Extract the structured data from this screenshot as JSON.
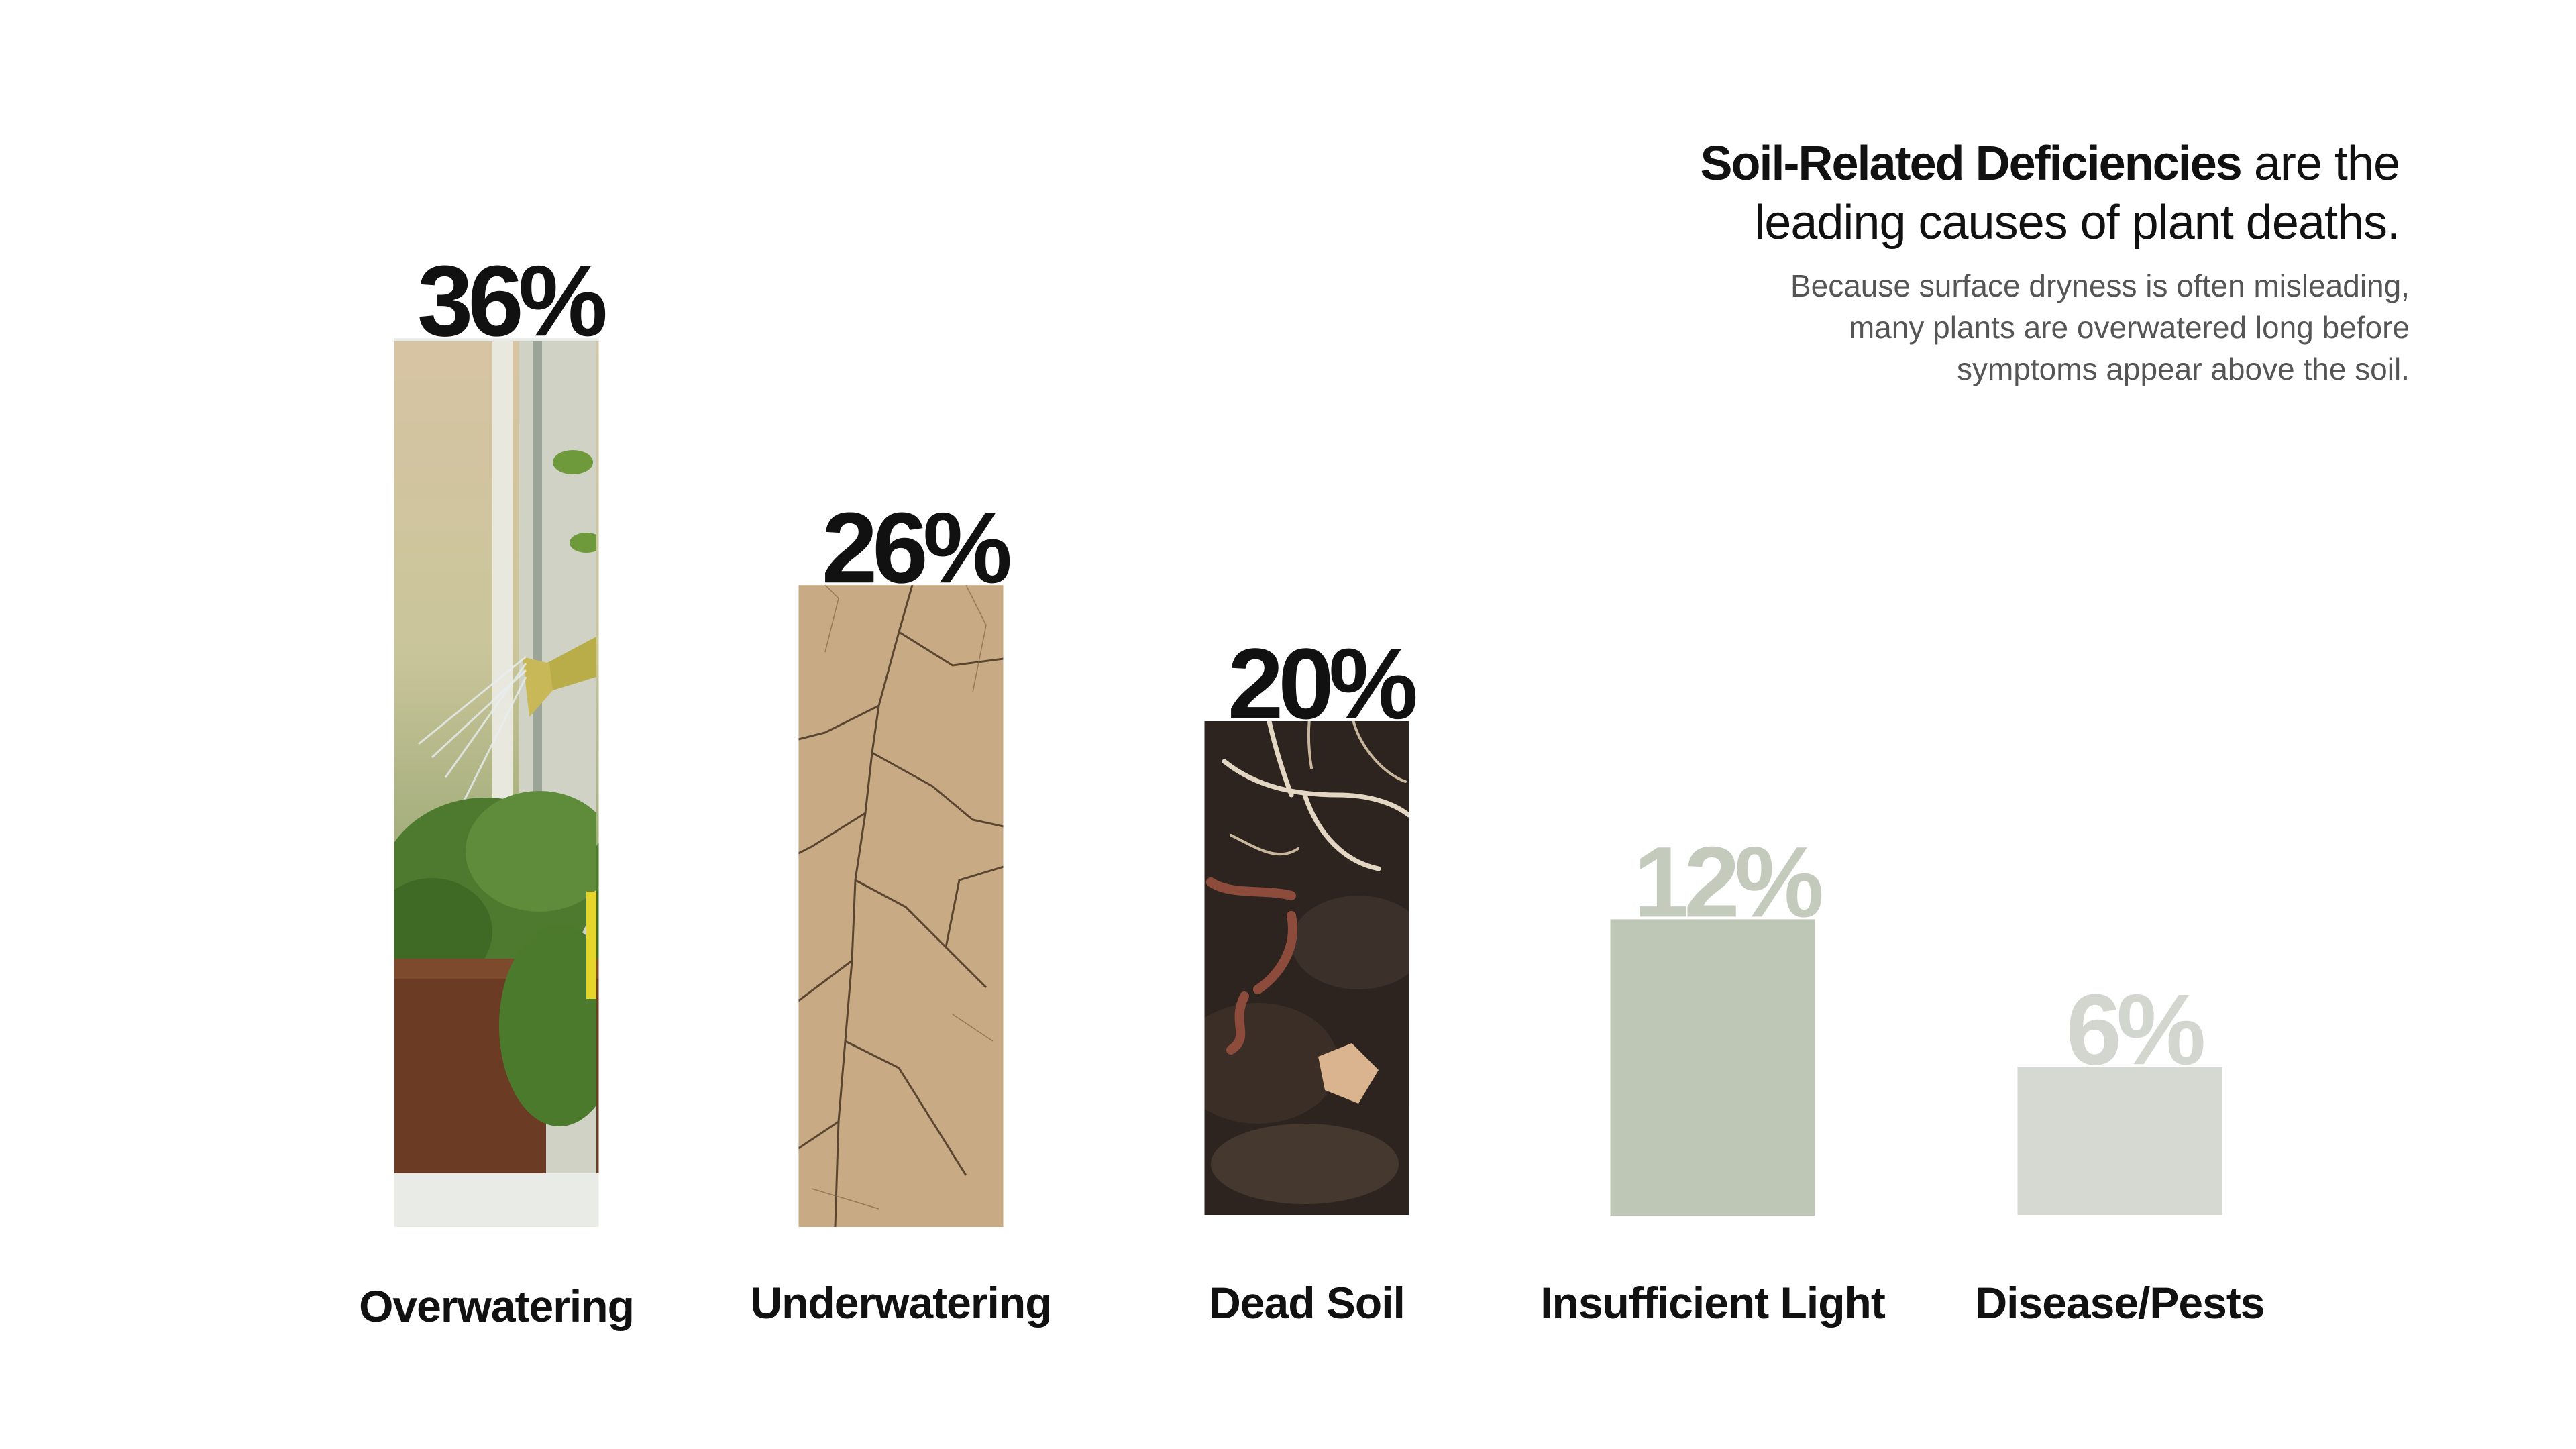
{
  "header": {
    "headline_bold": "Soil-Related Deficiencies",
    "headline_rest_line1": " are the",
    "headline_line2": "leading causes of plant deaths.",
    "subtext_line1": "Because surface dryness is often misleading,",
    "subtext_line2": "many plants are overwatered long before",
    "subtext_line3": "symptoms appear above the soil."
  },
  "chart_data": {
    "type": "bar",
    "categories": [
      "Overwatering",
      "Underwatering",
      "Dead Soil",
      "Insufficient Light",
      "Disease/Pests"
    ],
    "values": [
      36,
      26,
      20,
      12,
      6
    ],
    "value_labels": [
      "36%",
      "26%",
      "20%",
      "12%",
      "6%"
    ],
    "title": "",
    "xlabel": "",
    "ylabel": "",
    "grid": false,
    "bar_fills": [
      "photo-watering",
      "photo-cracked-earth",
      "photo-soil-worms",
      "#bec6b6",
      "#d6d8d2"
    ],
    "label_colors": [
      "#111111",
      "#111111",
      "#111111",
      "#c4cbbd",
      "#d3d5cf"
    ]
  }
}
